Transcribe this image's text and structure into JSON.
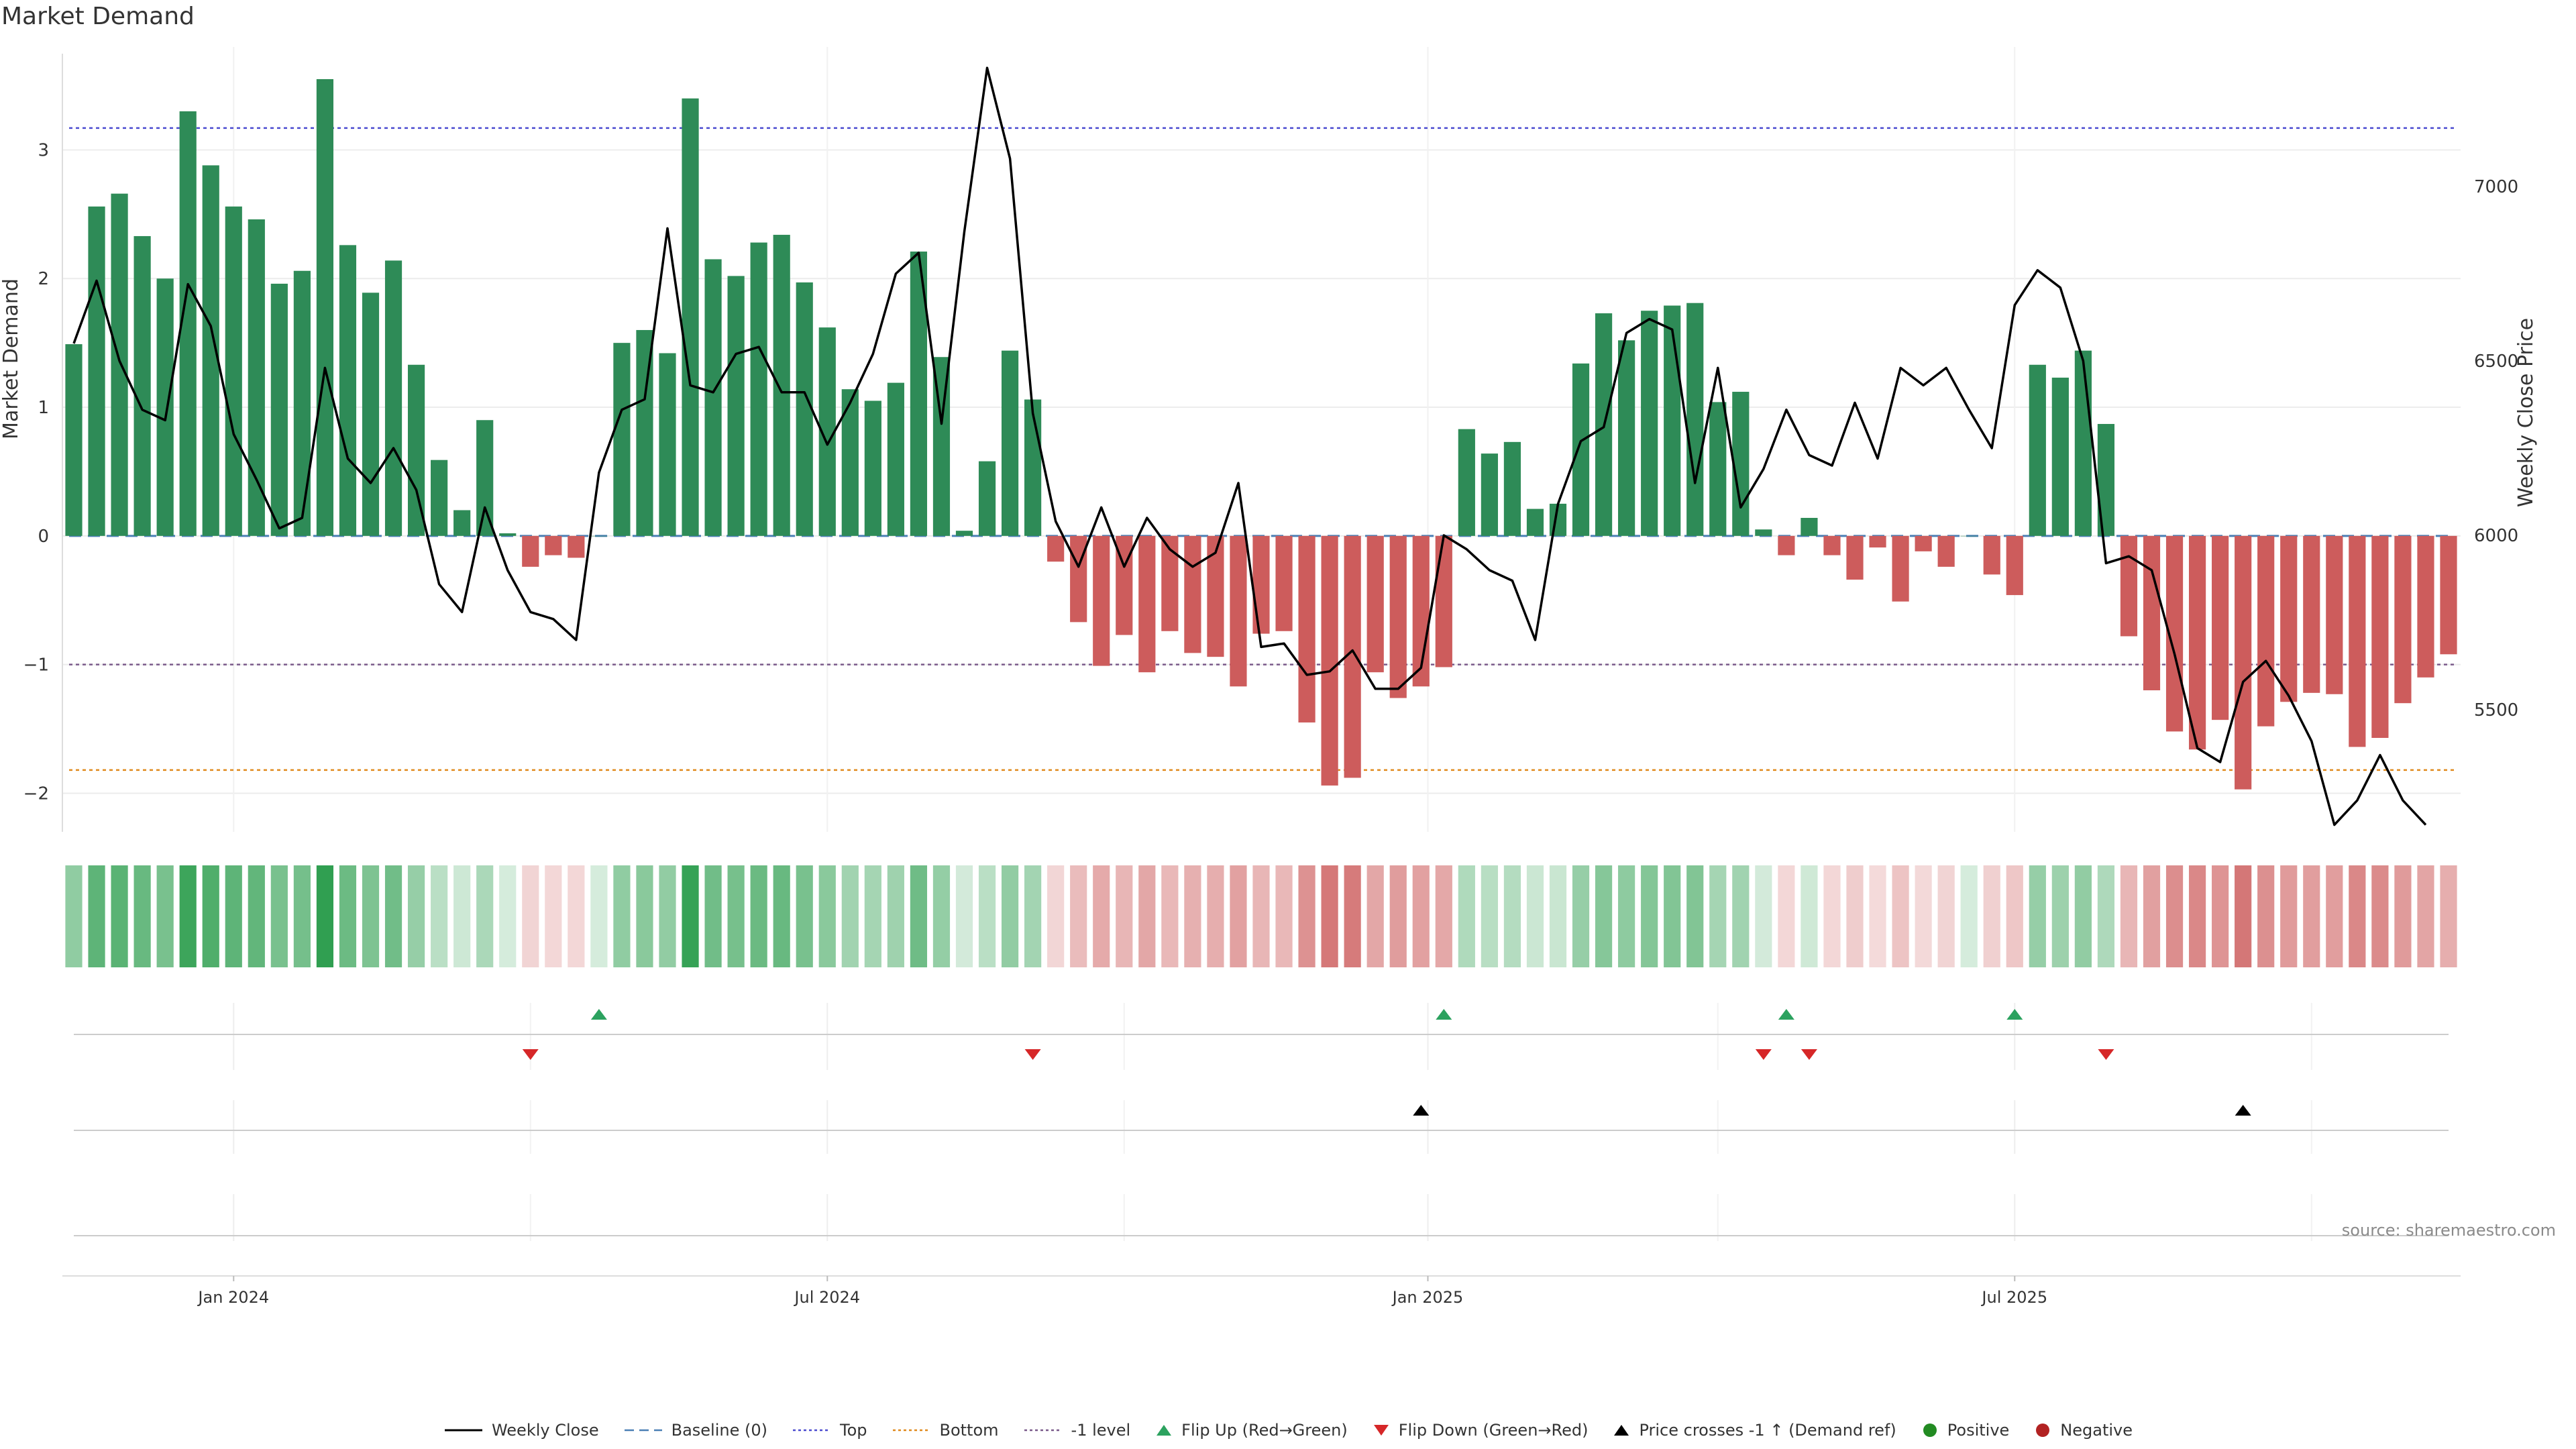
{
  "chart_data": {
    "type": "bar",
    "title": "Market Demand",
    "ylabel": "Market Demand",
    "y2label": "Weekly Close Price",
    "ylim": [
      -2.3,
      3.8
    ],
    "y2lim": [
      5150,
      7400
    ],
    "yticks": [
      -2,
      -1,
      0,
      1,
      2,
      3
    ],
    "y2ticks": [
      5500,
      6000,
      6500,
      7000
    ],
    "xticks": [
      {
        "label": "Jan 2024",
        "week": 7
      },
      {
        "label": "Jul 2024",
        "week": 33
      },
      {
        "label": "Jan 2025",
        "week": 59.3
      },
      {
        "label": "Jul 2025",
        "week": 85
      }
    ],
    "reference_lines": {
      "top": 3.17,
      "bottom": -1.82,
      "minus_one": -1.0,
      "baseline": 0
    },
    "demand": [
      1.49,
      2.56,
      2.66,
      2.33,
      2.0,
      3.3,
      2.88,
      2.56,
      2.46,
      1.96,
      2.06,
      3.55,
      2.26,
      1.89,
      2.14,
      1.33,
      0.59,
      0.2,
      0.9,
      0.02,
      -0.24,
      -0.15,
      -0.17,
      0.0,
      1.5,
      1.6,
      1.42,
      3.4,
      2.15,
      2.02,
      2.28,
      2.34,
      1.97,
      1.62,
      1.14,
      1.05,
      1.19,
      2.21,
      1.39,
      0.04,
      0.58,
      1.44,
      1.06,
      -0.2,
      -0.67,
      -1.01,
      -0.77,
      -1.06,
      -0.74,
      -0.91,
      -0.94,
      -1.17,
      -0.76,
      -0.74,
      -1.45,
      -1.94,
      -1.88,
      -1.06,
      -1.26,
      -1.17,
      -1.02,
      0.83,
      0.64,
      0.73,
      0.21,
      0.25,
      1.34,
      1.73,
      1.52,
      1.75,
      1.79,
      1.81,
      1.04,
      1.12,
      0.05,
      -0.15,
      0.14,
      -0.15,
      -0.34,
      -0.09,
      -0.51,
      -0.12,
      -0.24,
      0.0,
      -0.3,
      -0.46,
      1.33,
      1.23,
      1.44,
      0.87,
      -0.78,
      -1.2,
      -1.52,
      -1.66,
      -1.43,
      -1.97,
      -1.48,
      -1.29,
      -1.22,
      -1.23,
      -1.64,
      -1.57,
      -1.3,
      -1.1,
      -0.92
    ],
    "weekly_close": [
      6550,
      6730,
      6500,
      6360,
      6330,
      6720,
      6600,
      6290,
      6160,
      6020,
      6050,
      6480,
      6220,
      6150,
      6250,
      6130,
      5860,
      5780,
      6080,
      5900,
      5780,
      5760,
      5700,
      6180,
      6360,
      6390,
      6880,
      6430,
      6410,
      6520,
      6540,
      6410,
      6410,
      6260,
      6380,
      6520,
      6750,
      6810,
      6320,
      6870,
      7340,
      7080,
      6350,
      6040,
      5910,
      6080,
      5910,
      6050,
      5960,
      5910,
      5950,
      6150,
      5680,
      5690,
      5600,
      5610,
      5670,
      5560,
      5560,
      5620,
      6000,
      5960,
      5900,
      5870,
      5700,
      6090,
      6270,
      6310,
      6580,
      6620,
      6590,
      6150,
      6480,
      6080,
      6190,
      6360,
      6230,
      6200,
      6380,
      6220,
      6480,
      6430,
      6480,
      6360,
      6250,
      6660,
      6760,
      6710,
      6500,
      5920,
      5940,
      5900,
      5660,
      5390,
      5350,
      5580,
      5640,
      5540,
      5410,
      5170,
      5240,
      5370,
      5240,
      5170
    ],
    "flip_up_weeks": [
      23,
      60,
      75,
      85
    ],
    "flip_down_weeks": [
      20,
      42,
      74,
      76,
      89
    ],
    "price_cross_weeks": [
      59,
      95
    ],
    "legend": [
      "Weekly Close",
      "Baseline (0)",
      "Top",
      "Bottom",
      "-1 level",
      "Flip Up (Red→Green)",
      "Flip Down (Green→Red)",
      "Price crosses -1 ↑ (Demand ref)",
      "Positive",
      "Negative"
    ],
    "legend_placement": "bottom-center"
  },
  "colors": {
    "positive": "#2e8b57",
    "negative": "#cd5c5c",
    "price": "#000000",
    "top": "#4b4bd0",
    "bottom": "#e08a1e",
    "minus_one": "#7a5a8a",
    "baseline": "#4a7fb5",
    "flip_up": "#2ca25f",
    "flip_down": "#d62728",
    "cross": "#000000",
    "legend_positive": "#228b22",
    "legend_negative": "#b22222"
  },
  "source": "source: sharemaestro.com"
}
